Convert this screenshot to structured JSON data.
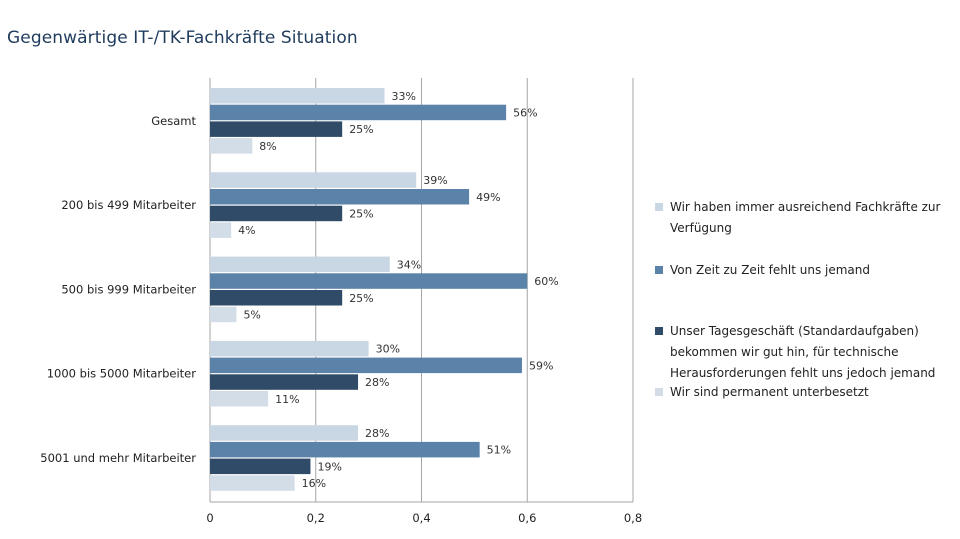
{
  "chart_data": {
    "type": "bar",
    "orientation": "horizontal",
    "title": "Gegenwärtige IT-/TK-Fachkräfte Situation",
    "categories": [
      "Gesamt",
      "200 bis 499 Mitarbeiter",
      "500 bis 999 Mitarbeiter",
      "1000 bis 5000 Mitarbeiter",
      "5001 und mehr Mitarbeiter"
    ],
    "series": [
      {
        "name": "Wir haben immer ausreichend Fachkräfte zur Verfügung",
        "color": "#c9d6e3",
        "values": [
          0.33,
          0.39,
          0.34,
          0.3,
          0.28
        ],
        "labels": [
          "33%",
          "39%",
          "34%",
          "30%",
          "28%"
        ]
      },
      {
        "name": "Von Zeit zu Zeit fehlt uns jemand",
        "color": "#5b82a8",
        "values": [
          0.56,
          0.49,
          0.6,
          0.59,
          0.51
        ],
        "labels": [
          "56%",
          "49%",
          "60%",
          "59%",
          "51%"
        ]
      },
      {
        "name": "Unser Tagesgeschäft (Standardaufgaben) bekommen wir gut hin, für technische Herausforderungen fehlt uns jedoch jemand",
        "color": "#2f4b68",
        "values": [
          0.25,
          0.25,
          0.25,
          0.28,
          0.19
        ],
        "labels": [
          "25%",
          "25%",
          "25%",
          "28%",
          "19%"
        ]
      },
      {
        "name": "Wir sind permanent unterbesetzt",
        "color": "#d2dde8",
        "values": [
          0.08,
          0.04,
          0.05,
          0.11,
          0.16
        ],
        "labels": [
          "8%",
          "4%",
          "5%",
          "11%",
          "16%"
        ]
      }
    ],
    "xlim": [
      0,
      0.8
    ],
    "xticks": [
      0,
      0.2,
      0.4,
      0.6,
      0.8
    ],
    "xtick_labels": [
      "0",
      "0,2",
      "0,4",
      "0,6",
      "0,8"
    ],
    "grid": "vertical",
    "legend_position": "right"
  }
}
